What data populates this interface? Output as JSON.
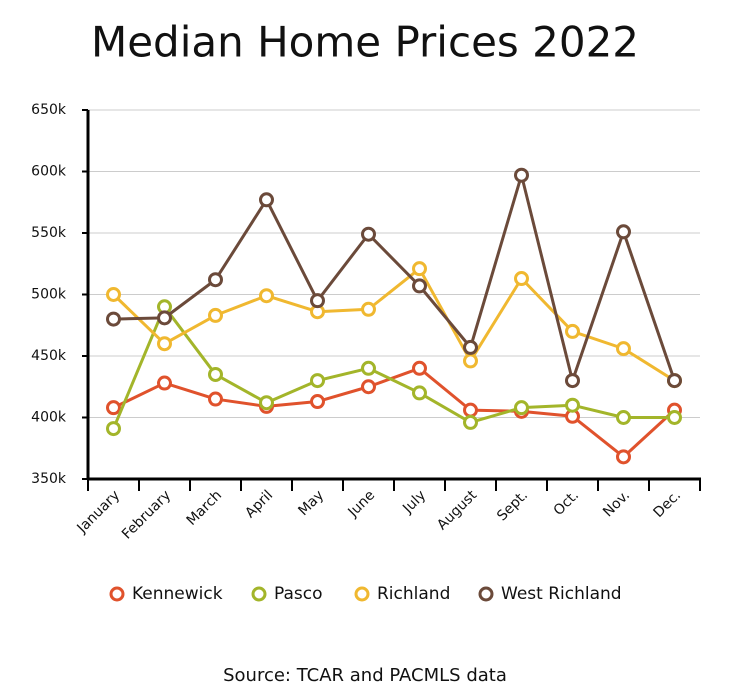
{
  "chart_data": {
    "type": "line",
    "title": "Median Home Prices 2022",
    "source": "Source: TCAR and PACMLS data",
    "categories": [
      "January",
      "February",
      "March",
      "April",
      "May",
      "June",
      "July",
      "August",
      "Sept.",
      "Oct.",
      "Nov.",
      "Dec."
    ],
    "series": [
      {
        "name": "Kennewick",
        "color": "#e0522c",
        "values": [
          408,
          428,
          415,
          409,
          413,
          425,
          440,
          406,
          405,
          401,
          368,
          406
        ]
      },
      {
        "name": "Pasco",
        "color": "#a3b52a",
        "values": [
          391,
          490,
          435,
          412,
          430,
          440,
          420,
          396,
          408,
          410,
          400,
          400
        ]
      },
      {
        "name": "Richland",
        "color": "#f0b830",
        "values": [
          500,
          460,
          483,
          499,
          486,
          488,
          521,
          446,
          513,
          470,
          456,
          430
        ]
      },
      {
        "name": "West Richland",
        "color": "#6b4a3a",
        "values": [
          480,
          481,
          512,
          577,
          495,
          549,
          507,
          457,
          597,
          430,
          551,
          430
        ]
      }
    ],
    "ylim": [
      350,
      650
    ],
    "yticks": [
      {
        "value": 350,
        "label": "350k"
      },
      {
        "value": 400,
        "label": "400k"
      },
      {
        "value": 450,
        "label": "450k"
      },
      {
        "value": 500,
        "label": "500k"
      },
      {
        "value": 550,
        "label": "550k"
      },
      {
        "value": 600,
        "label": "600k"
      },
      {
        "value": 650,
        "label": "650k"
      }
    ],
    "grid": true
  }
}
